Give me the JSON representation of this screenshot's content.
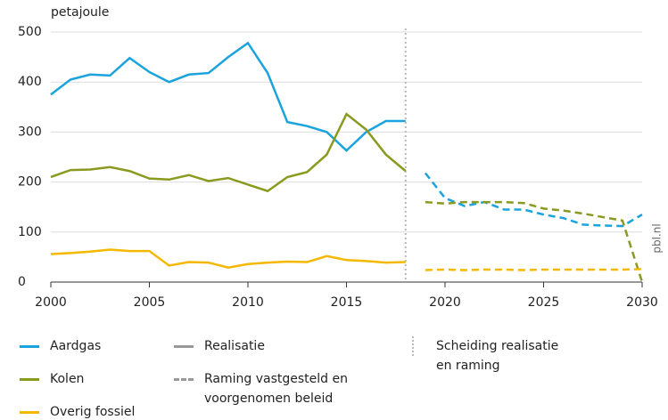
{
  "chart_data": {
    "type": "line",
    "y_axis_label": "petajoule",
    "source": "pbl.nl",
    "x": [
      2000,
      2001,
      2002,
      2003,
      2004,
      2005,
      2006,
      2007,
      2008,
      2009,
      2010,
      2011,
      2012,
      2013,
      2014,
      2015,
      2016,
      2017,
      2018,
      2019,
      2020,
      2021,
      2022,
      2023,
      2024,
      2025,
      2026,
      2027,
      2028,
      2029,
      2030
    ],
    "xlim": [
      2000,
      2030
    ],
    "xticks": [
      2000,
      2005,
      2010,
      2015,
      2020,
      2025,
      2030
    ],
    "ylim": [
      0,
      500
    ],
    "yticks": [
      0,
      100,
      200,
      300,
      400,
      500
    ],
    "grid": true,
    "divider_x": 2018,
    "series": [
      {
        "name": "Aardgas",
        "color": "#1aa3dc",
        "realisatie": [
          375,
          405,
          415,
          413,
          448,
          420,
          400,
          415,
          418,
          450,
          478,
          418,
          320,
          312,
          300,
          263,
          300,
          322,
          322,
          null,
          null,
          null,
          null,
          null,
          null,
          null,
          null,
          null,
          null,
          null,
          null
        ],
        "raming": [
          null,
          null,
          null,
          null,
          null,
          null,
          null,
          null,
          null,
          null,
          null,
          null,
          null,
          null,
          null,
          null,
          null,
          null,
          null,
          218,
          168,
          152,
          160,
          145,
          145,
          135,
          128,
          115,
          113,
          112,
          135
        ]
      },
      {
        "name": "Kolen",
        "color": "#8a9a1e",
        "realisatie": [
          210,
          224,
          225,
          230,
          222,
          207,
          205,
          214,
          202,
          208,
          195,
          182,
          210,
          220,
          255,
          336,
          305,
          255,
          222,
          null,
          null,
          null,
          null,
          null,
          null,
          null,
          null,
          null,
          null,
          null,
          null
        ],
        "raming": [
          null,
          null,
          null,
          null,
          null,
          null,
          null,
          null,
          null,
          null,
          null,
          null,
          null,
          null,
          null,
          null,
          null,
          null,
          null,
          160,
          157,
          160,
          160,
          160,
          158,
          147,
          143,
          137,
          130,
          123,
          0
        ]
      },
      {
        "name": "Overig fossiel",
        "color": "#f5b800",
        "realisatie": [
          56,
          58,
          61,
          65,
          62,
          62,
          33,
          40,
          39,
          29,
          36,
          39,
          41,
          40,
          52,
          44,
          42,
          39,
          40,
          null,
          null,
          null,
          null,
          null,
          null,
          null,
          null,
          null,
          null,
          null,
          null
        ],
        "raming": [
          null,
          null,
          null,
          null,
          null,
          null,
          null,
          null,
          null,
          null,
          null,
          null,
          null,
          null,
          null,
          null,
          null,
          null,
          null,
          24,
          25,
          24,
          25,
          25,
          24,
          25,
          25,
          25,
          25,
          25,
          26
        ]
      }
    ],
    "line_styles": [
      {
        "label": "Realisatie",
        "dashed": false
      },
      {
        "label": "Raming vastgesteld en voorgenomen beleid",
        "dashed": true
      }
    ],
    "divider_label": "Scheiding realisatie en raming"
  }
}
